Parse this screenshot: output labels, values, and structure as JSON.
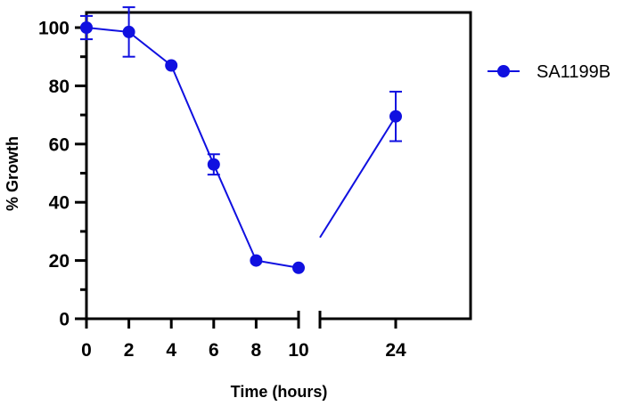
{
  "chart_data": {
    "type": "line",
    "xlabel": "Time (hours)",
    "ylabel": "% Growth",
    "ylim": [
      0,
      100
    ],
    "yticks": [
      0,
      20,
      40,
      60,
      80,
      100
    ],
    "xticks": [
      0,
      2,
      4,
      6,
      8,
      10,
      24
    ],
    "x_axis_break": [
      10,
      24
    ],
    "legend_position": "right",
    "grid": false,
    "series": [
      {
        "name": "SA1199B",
        "color": "#1010e0",
        "marker": "circle",
        "x": [
          0,
          2,
          4,
          6,
          8,
          10,
          24
        ],
        "y": [
          100,
          98.5,
          87,
          53,
          20,
          17.5,
          69.5
        ],
        "error": [
          4,
          8.5,
          0,
          3.5,
          0,
          0,
          8.5
        ]
      }
    ]
  }
}
